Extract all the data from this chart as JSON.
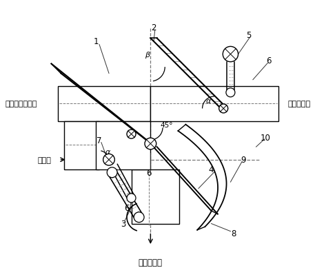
{
  "labels": {
    "mixed_air": "混合空气出气口",
    "cold_air": "冷气进气口",
    "exhaust": "排气口",
    "hot_air": "热气进气口"
  },
  "line_color": "#000000",
  "bg_color": "#ffffff",
  "figsize": [
    4.57,
    4.06
  ],
  "dpi": 100,
  "xlim": [
    0,
    457
  ],
  "ylim": [
    0,
    406
  ]
}
